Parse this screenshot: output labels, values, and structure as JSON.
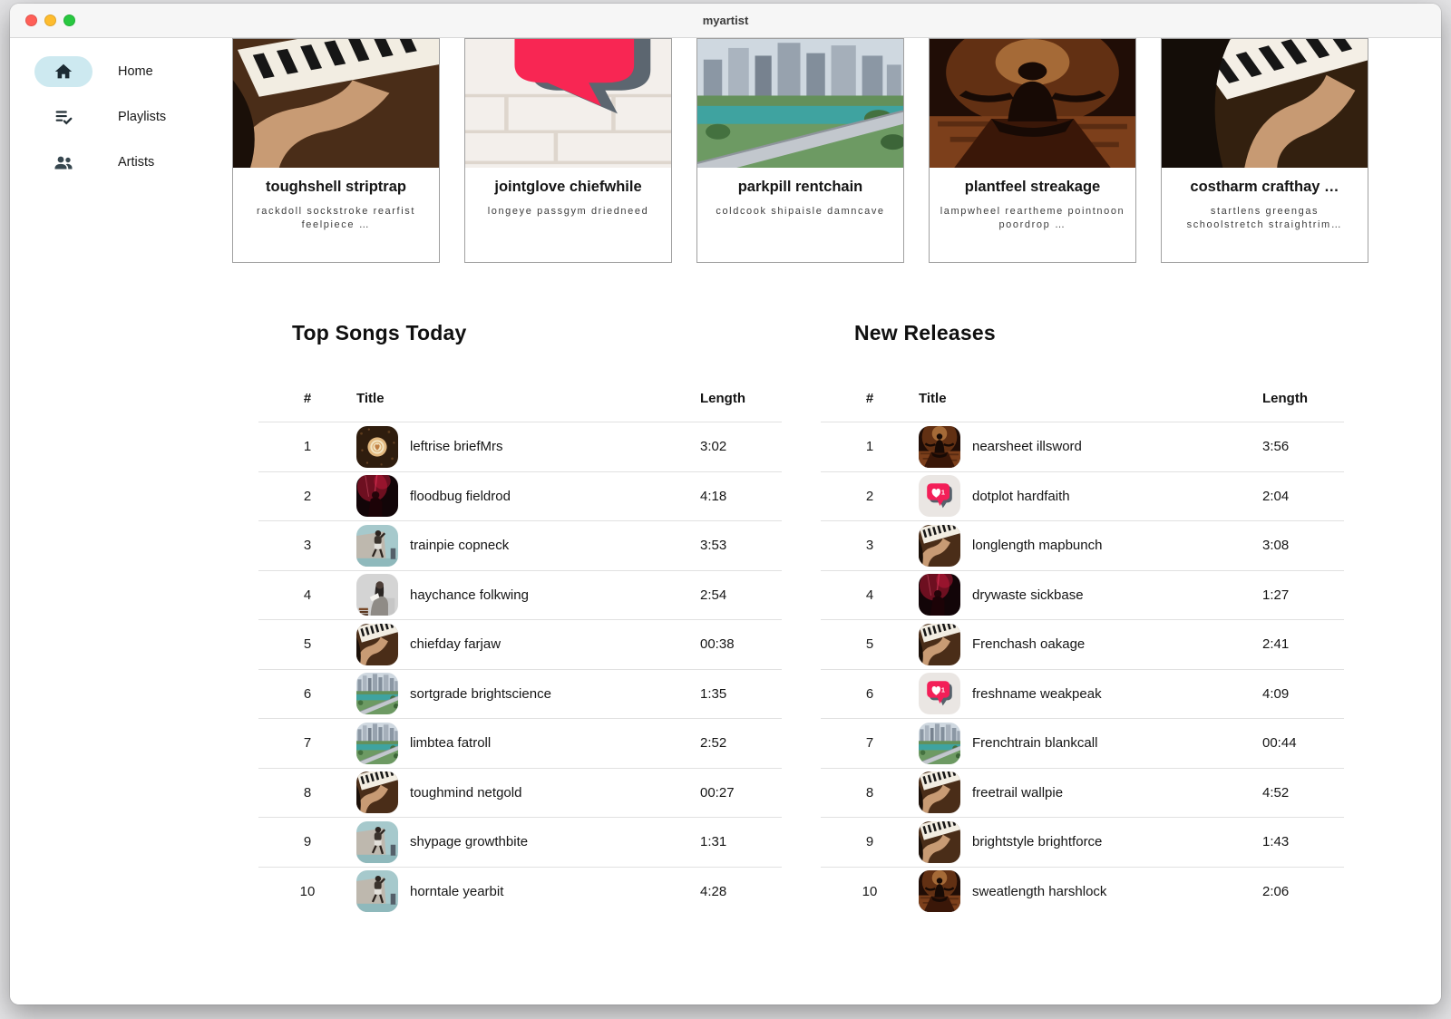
{
  "window": {
    "title": "myartist"
  },
  "sidebar": {
    "items": [
      {
        "label": "Home",
        "icon": "home-icon",
        "active": true
      },
      {
        "label": "Playlists",
        "icon": "playlist-icon",
        "active": false
      },
      {
        "label": "Artists",
        "icon": "artists-icon",
        "active": false
      }
    ]
  },
  "cards": [
    {
      "title": "toughshell striptrap",
      "subtitle": "rackdoll sockstroke rearfist feelpiece …",
      "art": "piano"
    },
    {
      "title": "jointglove chiefwhile",
      "subtitle": "longeye passgym driedneed",
      "art": "graffiti"
    },
    {
      "title": "parkpill rentchain",
      "subtitle": "coldcook shipaisle damncave",
      "art": "city"
    },
    {
      "title": "plantfeel streakage",
      "subtitle": "lampwheel reartheme pointnoon poordrop …",
      "art": "meditation"
    },
    {
      "title": "costharm crafthay …",
      "subtitle": "startlens greengas schoolstretch straightrim…",
      "art": "piano-light"
    }
  ],
  "tables": [
    {
      "heading": "Top Songs Today",
      "columns": [
        "#",
        "Title",
        "Length"
      ],
      "rows": [
        {
          "num": "1",
          "title": "leftrise briefMrs",
          "length": "3:02",
          "art": "coffee"
        },
        {
          "num": "2",
          "title": "floodbug fieldrod",
          "length": "4:18",
          "art": "concert"
        },
        {
          "num": "3",
          "title": "trainpie copneck",
          "length": "3:53",
          "art": "jumper"
        },
        {
          "num": "4",
          "title": "haychance folkwing",
          "length": "2:54",
          "art": "reader"
        },
        {
          "num": "5",
          "title": "chiefday farjaw",
          "length": "00:38",
          "art": "piano"
        },
        {
          "num": "6",
          "title": "sortgrade brightscience",
          "length": "1:35",
          "art": "city"
        },
        {
          "num": "7",
          "title": "limbtea fatroll",
          "length": "2:52",
          "art": "city"
        },
        {
          "num": "8",
          "title": "toughmind netgold",
          "length": "00:27",
          "art": "piano"
        },
        {
          "num": "9",
          "title": "shypage growthbite",
          "length": "1:31",
          "art": "jumper"
        },
        {
          "num": "10",
          "title": "horntale yearbit",
          "length": "4:28",
          "art": "jumper"
        }
      ]
    },
    {
      "heading": "New Releases",
      "columns": [
        "#",
        "Title",
        "Length"
      ],
      "rows": [
        {
          "num": "1",
          "title": "nearsheet illsword",
          "length": "3:56",
          "art": "meditation"
        },
        {
          "num": "2",
          "title": "dotplot hardfaith",
          "length": "2:04",
          "art": "like"
        },
        {
          "num": "3",
          "title": "longlength mapbunch",
          "length": "3:08",
          "art": "piano"
        },
        {
          "num": "4",
          "title": "drywaste sickbase",
          "length": "1:27",
          "art": "concert"
        },
        {
          "num": "5",
          "title": "Frenchash oakage",
          "length": "2:41",
          "art": "piano"
        },
        {
          "num": "6",
          "title": "freshname weakpeak",
          "length": "4:09",
          "art": "like"
        },
        {
          "num": "7",
          "title": "Frenchtrain blankcall",
          "length": "00:44",
          "art": "city"
        },
        {
          "num": "8",
          "title": "freetrail wallpie",
          "length": "4:52",
          "art": "piano"
        },
        {
          "num": "9",
          "title": "brightstyle brightforce",
          "length": "1:43",
          "art": "piano"
        },
        {
          "num": "10",
          "title": "sweatlength harshlock",
          "length": "2:06",
          "art": "meditation"
        }
      ]
    }
  ],
  "colors": {
    "accent_pill": "#cde9f0",
    "like_pink": "#f31f58",
    "traffic_red": "#ff5f57",
    "traffic_yellow": "#febc2e",
    "traffic_green": "#28c840"
  }
}
